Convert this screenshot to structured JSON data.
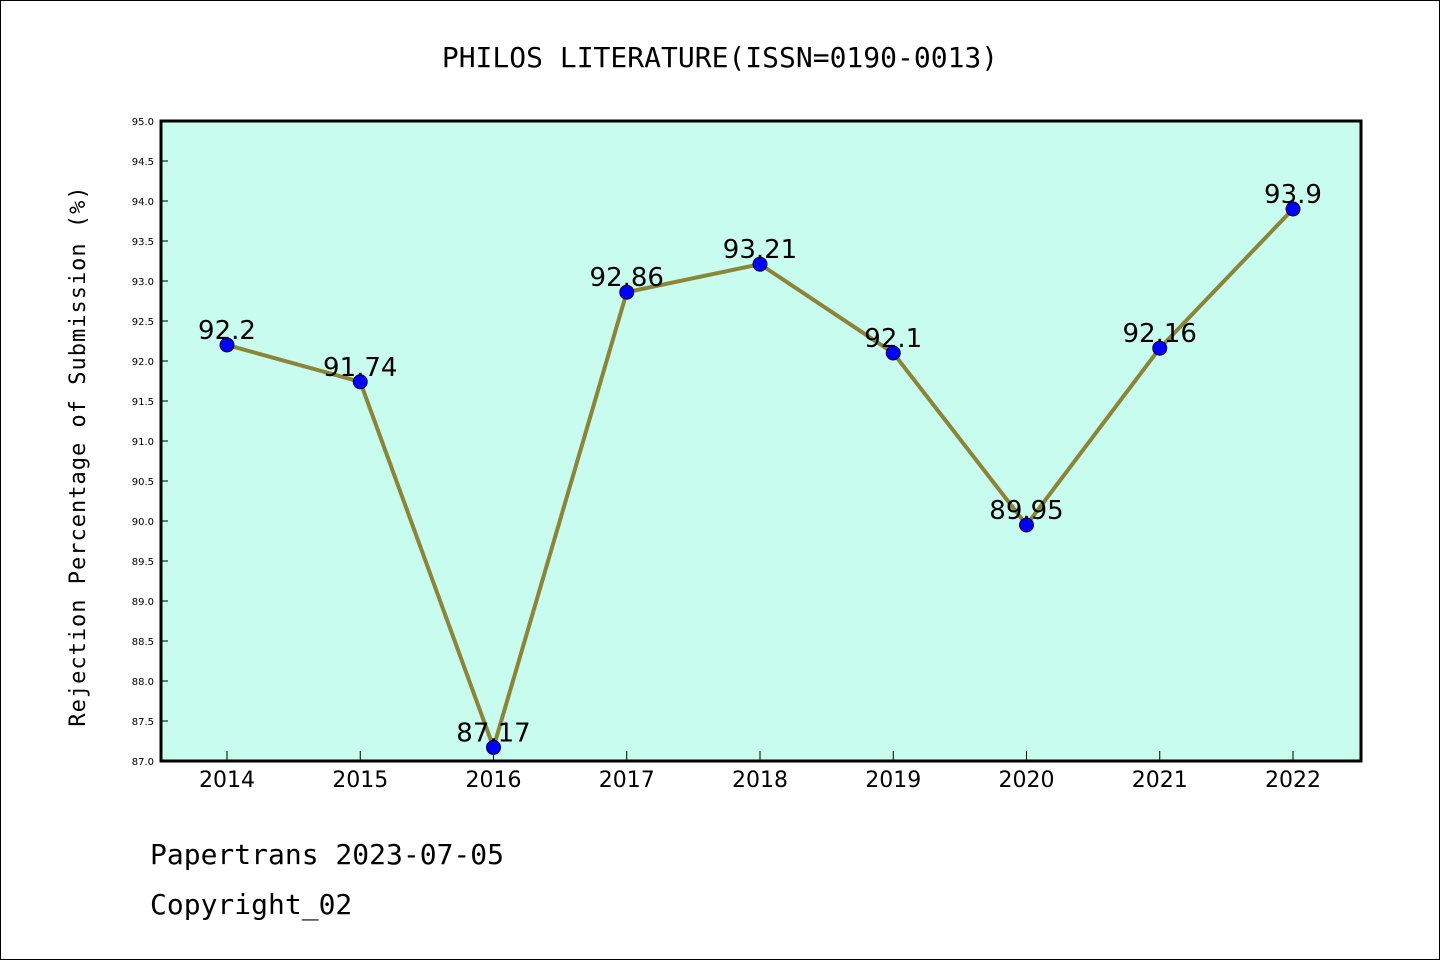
{
  "chart_data": {
    "type": "line",
    "title": "PHILOS LITERATURE(ISSN=0190-0013)",
    "xlabel": "",
    "ylabel": "Rejection Percentage of Submission (%)",
    "categories": [
      "2014",
      "2015",
      "2016",
      "2017",
      "2018",
      "2019",
      "2020",
      "2021",
      "2022"
    ],
    "values": [
      92.2,
      91.74,
      87.17,
      92.86,
      93.21,
      92.1,
      89.95,
      92.16,
      93.9
    ],
    "data_labels": [
      "92.2",
      "91.74",
      "87.17",
      "92.86",
      "93.21",
      "92.1",
      "89.95",
      "92.16",
      "93.9"
    ],
    "ylim": [
      87.0,
      95.0
    ],
    "yticks": [
      "87.0",
      "87.5",
      "88.0",
      "88.5",
      "89.0",
      "89.5",
      "90.0",
      "90.5",
      "91.0",
      "91.5",
      "92.0",
      "92.5",
      "93.0",
      "93.5",
      "94.0",
      "94.5",
      "95.0"
    ],
    "grid": false,
    "colors": {
      "plot_background": "#c8fcee",
      "line": "#8c8437",
      "marker": "#0000ff"
    }
  },
  "footer": {
    "source": "Papertrans 2023-07-05",
    "copyright": "Copyright_02"
  }
}
